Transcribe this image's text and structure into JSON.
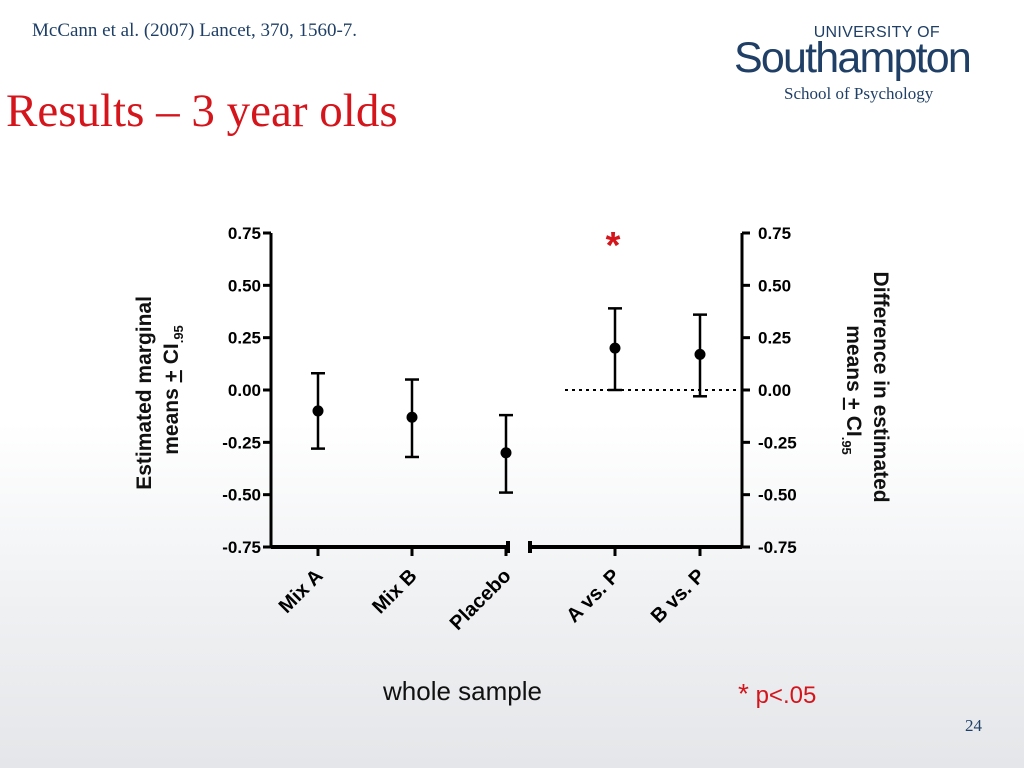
{
  "header": {
    "citation": "McCann et al. (2007) Lancet, 370, 1560-7.",
    "title": "Results – 3 year olds",
    "logo_line1": "UNIVERSITY OF",
    "logo_line2": "Southampton",
    "logo_line3": "School of Psychology"
  },
  "footer": {
    "x_caption": "whole sample",
    "significance_star": "*",
    "significance_text": "p<.05",
    "page_number": "24"
  },
  "colors": {
    "title": "#d4151c",
    "navy": "#1f3f66",
    "significance": "#d4151c"
  },
  "chart_data": {
    "type": "scatter",
    "subtype": "error-bar",
    "ylim": [
      -0.75,
      0.75
    ],
    "yticks": [
      "0.75",
      "0.50",
      "0.25",
      "0.00",
      "-0.25",
      "-0.50",
      "-0.75"
    ],
    "ylabel_left": "Estimated marginal means + CI.95",
    "ylabel_right": "Difference in estimated means + CI.95",
    "left_panel": {
      "categories": [
        "Mix A",
        "Mix B",
        "Placebo"
      ],
      "means": [
        -0.1,
        -0.13,
        -0.3
      ],
      "lower": [
        -0.28,
        -0.32,
        -0.49
      ],
      "upper": [
        0.08,
        0.05,
        -0.12
      ]
    },
    "right_panel": {
      "categories": [
        "A vs. P",
        "B vs. P"
      ],
      "means": [
        0.2,
        0.17
      ],
      "lower": [
        0.0,
        -0.03
      ],
      "upper": [
        0.39,
        0.36
      ],
      "reference_line": 0.0
    },
    "annotations": [
      {
        "category": "A vs. P",
        "text": "*"
      }
    ]
  }
}
